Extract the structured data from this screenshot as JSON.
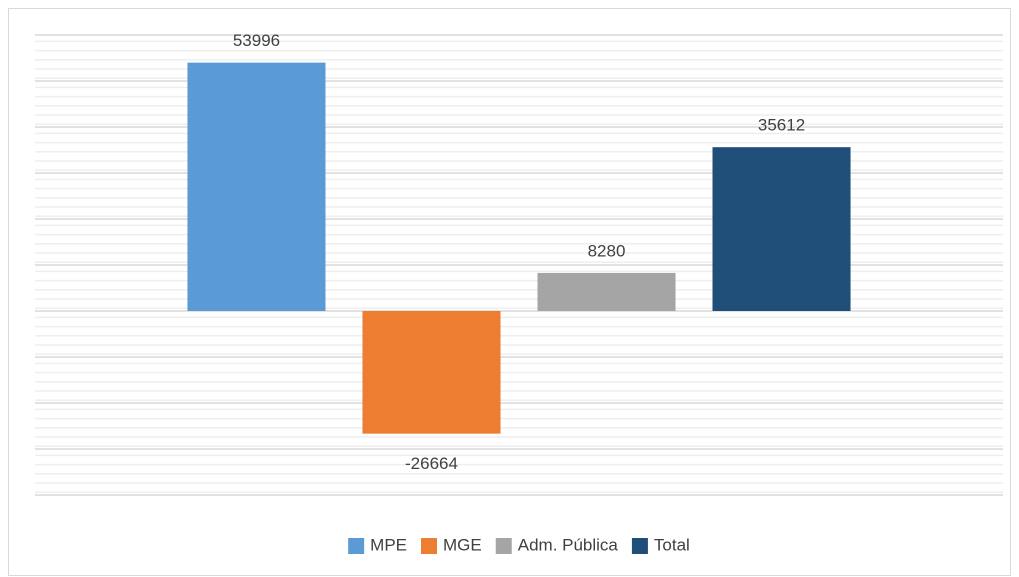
{
  "chart_data": {
    "type": "bar",
    "categories": [
      null
    ],
    "series": [
      {
        "name": "MPE",
        "color": "#5b9bd5",
        "values": [
          53996
        ]
      },
      {
        "name": "MGE",
        "color": "#ed7d31",
        "values": [
          -26664
        ]
      },
      {
        "name": "Adm. Pública",
        "color": "#a5a5a5",
        "values": [
          8280
        ]
      },
      {
        "name": "Total",
        "color": "#1f4e79",
        "values": [
          35612
        ]
      }
    ],
    "ylim": [
      -40000,
      60000
    ],
    "yticks": [
      -40000,
      -30000,
      -20000,
      -10000,
      0,
      10000,
      20000,
      30000,
      40000,
      50000,
      60000
    ],
    "grid": true,
    "legend": "bottom"
  }
}
